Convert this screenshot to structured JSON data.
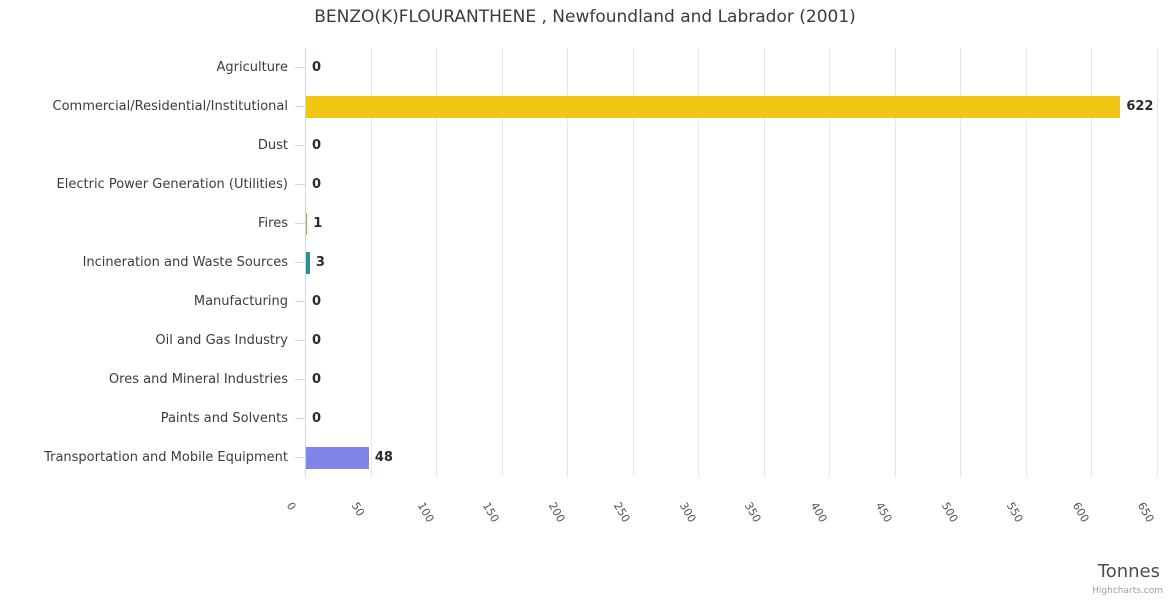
{
  "title": "BENZO(K)FLOURANTHENE , Newfoundland and Labrador (2001)",
  "chart_data": {
    "type": "bar",
    "orientation": "horizontal",
    "title": "BENZO(K)FLOURANTHENE , Newfoundland and Labrador (2001)",
    "categories": [
      "Agriculture",
      "Commercial/Residential/Institutional",
      "Dust",
      "Electric Power Generation (Utilities)",
      "Fires",
      "Incineration and Waste Sources",
      "Manufacturing",
      "Oil and Gas Industry",
      "Ores and Mineral Industries",
      "Paints and Solvents",
      "Transportation and Mobile Equipment"
    ],
    "values": [
      0,
      622,
      0,
      0,
      1,
      3,
      0,
      0,
      0,
      0,
      48
    ],
    "value_labels": [
      "0",
      "622",
      "0",
      "0",
      "1",
      "3",
      "0",
      "0",
      "0",
      "0",
      "48"
    ],
    "point_colors": [
      null,
      "#F0C514",
      null,
      null,
      "#F28F43",
      "#2B908F",
      null,
      null,
      null,
      null,
      "#8085E9"
    ],
    "xlabel": "Tonnes",
    "xlim": [
      0,
      650
    ],
    "x_ticks": [
      0,
      50,
      100,
      150,
      200,
      250,
      300,
      350,
      400,
      450,
      500,
      550,
      600,
      650
    ],
    "x_tick_label_rotation_deg": 60,
    "grid": true,
    "legend": false,
    "credits": "Highcharts.com"
  },
  "palette": {
    "background": "#FFFFFF",
    "grid_line": "#E6E6E6",
    "axis_line": "#CCD6EB",
    "category_tick": "#CCD6EB",
    "title_text": "#3B3B3B",
    "category_text": "#3C3C3C",
    "tick_label_text": "#555555",
    "value_label_text": "#2B2B2B",
    "axis_title_text": "#4D4D4D",
    "credits_text": "#9A9A9A"
  }
}
